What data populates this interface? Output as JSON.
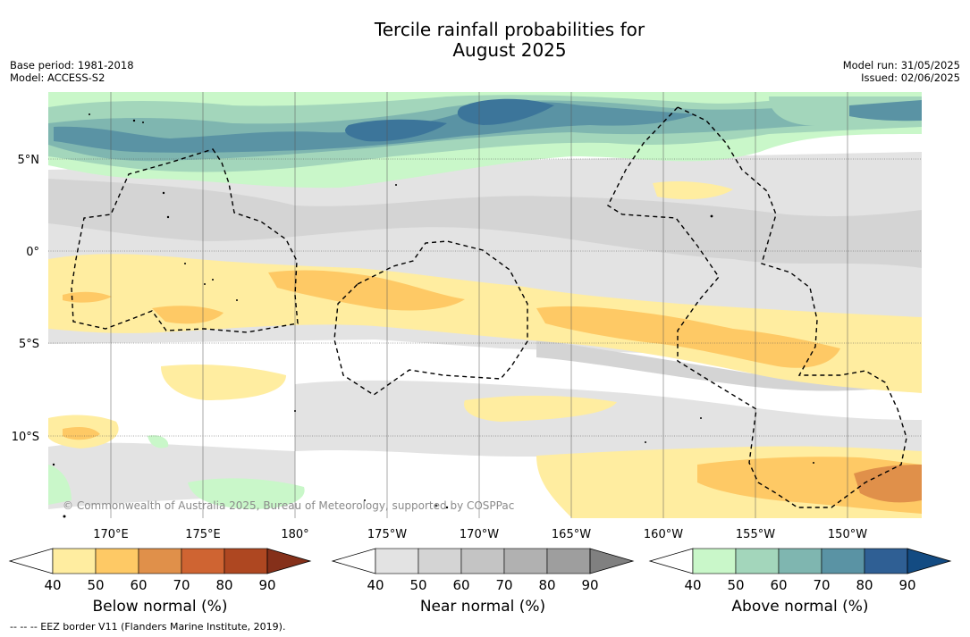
{
  "title_line1": "Tercile rainfall probabilities for",
  "title_line2": "August 2025",
  "base_period": "Base period: 1981-2018",
  "model": "Model: ACCESS-S2",
  "model_run": "Model run: 31/05/2025",
  "issued": "Issued: 02/06/2025",
  "copyright": "© Commonwealth of Australia 2025, Bureau of Meteorology, supported by COSPPac",
  "eez_note": "--  --  -- EEZ border V11 (Flanders Marine Institute, 2019).",
  "lat_labels": [
    "5°N",
    "0°",
    "5°S",
    "10°S"
  ],
  "lon_labels": [
    "170°E",
    "175°E",
    "180°",
    "175°W",
    "170°W",
    "165°W",
    "160°W",
    "155°W",
    "150°W"
  ],
  "colorbars": [
    {
      "name": "below",
      "title": "Below normal (%)",
      "ticks": [
        "40",
        "50",
        "60",
        "70",
        "80",
        "90"
      ],
      "colors": [
        "#ffeda0",
        "#fec965",
        "#e0904a",
        "#cf6432",
        "#ae4721",
        "#85301a"
      ]
    },
    {
      "name": "near",
      "title": "Near normal (%)",
      "ticks": [
        "40",
        "50",
        "60",
        "70",
        "80",
        "90"
      ],
      "colors": [
        "#e3e3e3",
        "#d4d4d4",
        "#c4c4c4",
        "#b1b1b1",
        "#9e9e9e",
        "#808080"
      ]
    },
    {
      "name": "above",
      "title": "Above normal (%)",
      "ticks": [
        "40",
        "50",
        "60",
        "70",
        "80",
        "90"
      ],
      "colors": [
        "#c9f7c9",
        "#a3d6bb",
        "#7fb6b0",
        "#5a93a4",
        "#2f5f94",
        "#134b82"
      ]
    }
  ]
}
